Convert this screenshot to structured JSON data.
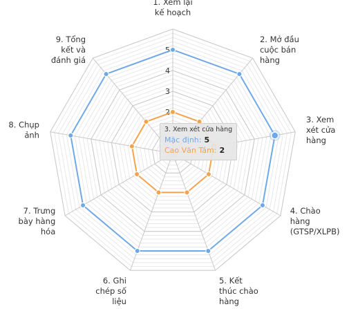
{
  "chart_data": {
    "type": "radar",
    "categories": [
      [
        "1. Xem lại",
        "kế hoạch"
      ],
      [
        "2. Mở đầu",
        "cuộc bán",
        "hàng"
      ],
      [
        "3. Xem",
        "xét cửa",
        "hàng"
      ],
      [
        "4. Chào",
        "hàng",
        "(GTSP/XLPB)"
      ],
      [
        "5. Kết",
        "thúc chào",
        "hàng"
      ],
      [
        "6. Ghi",
        "chép số",
        "liệu"
      ],
      [
        "7. Trưng",
        "bày hàng",
        "hóa"
      ],
      [
        "8. Chụp",
        "ảnh"
      ],
      [
        "9. Tổng",
        "kết và",
        "đánh giá"
      ]
    ],
    "tick_labels": [
      "2",
      "3",
      "4",
      "5"
    ],
    "rlim": [
      0,
      6
    ],
    "series": [
      {
        "name": "Mặc định",
        "color": "#6fa8e6",
        "values": [
          5,
          5,
          5,
          5,
          5,
          5,
          5,
          5,
          5
        ]
      },
      {
        "name": "Cao Văn Tám",
        "color": "#f4a24c",
        "values": [
          2,
          2,
          2,
          2,
          2,
          2,
          2,
          2,
          2
        ]
      }
    ],
    "highlight_index": 2,
    "tooltip": {
      "title": "3. Xem xét cửa hàng",
      "rows": [
        {
          "label": "Mặc định:",
          "value": "5"
        },
        {
          "label": "Cao Văn Tám:",
          "value": "2"
        }
      ]
    }
  }
}
